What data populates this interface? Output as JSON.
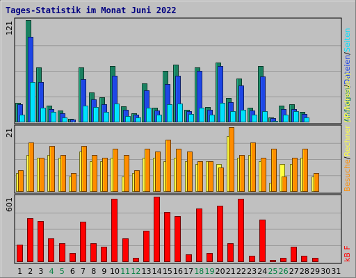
{
  "chart_data": {
    "type": "bar",
    "title": "Tages-Statistik im Monat Juni 2022",
    "days": [
      "1",
      "2",
      "3",
      "4",
      "5",
      "6",
      "7",
      "8",
      "9",
      "10",
      "11",
      "12",
      "13",
      "14",
      "15",
      "16",
      "17",
      "18",
      "19",
      "20",
      "21",
      "22",
      "23",
      "24",
      "25",
      "26",
      "27",
      "28",
      "29",
      "30",
      "31"
    ],
    "weekend_days": [
      "4",
      "5",
      "11",
      "12",
      "18",
      "19",
      "25",
      "26"
    ],
    "colors": {
      "title": "#000080",
      "weekday_label": "#000000",
      "weekend_label": "#008040",
      "anfragen": "#1a8060",
      "dateien": "#1e46e6",
      "seiten": "#00e0ff",
      "besuche": "#ff8c00",
      "rechner": "#ffff40",
      "kb": "#ff0000"
    },
    "panels": [
      {
        "id": "top",
        "ymax_label": "121",
        "ymax": 121,
        "legend": [
          {
            "key": "anfragen",
            "text": "Anfragen"
          },
          {
            "key": "sep",
            "text": "/"
          },
          {
            "key": "dateien",
            "text": "Dateien"
          },
          {
            "key": "sep",
            "text": "/"
          },
          {
            "key": "seiten",
            "text": "Seiten"
          }
        ],
        "series": [
          {
            "name": "Anfragen",
            "key": "anfragen",
            "values": [
              23,
              121,
              65,
              20,
              14,
              4,
              65,
              35,
              30,
              67,
              19,
              11,
              46,
              17,
              61,
              68,
              15,
              65,
              18,
              71,
              29,
              52,
              17,
              67,
              6,
              20,
              21,
              12,
              0,
              0,
              0
            ]
          },
          {
            "name": "Dateien",
            "key": "dateien",
            "values": [
              21,
              101,
              48,
              16,
              11,
              3,
              51,
              27,
              21,
              55,
              15,
              9,
              38,
              14,
              45,
              55,
              13,
              61,
              15,
              67,
              24,
              44,
              14,
              54,
              5,
              16,
              16,
              10,
              0,
              0,
              0
            ]
          },
          {
            "name": "Seiten",
            "key": "seiten",
            "values": [
              9,
              48,
              17,
              12,
              6,
              1,
              20,
              18,
              12,
              22,
              7,
              6,
              17,
              9,
              21,
              22,
              10,
              17,
              9,
              23,
              13,
              15,
              9,
              13,
              2,
              9,
              13,
              6,
              0,
              0,
              0
            ]
          }
        ]
      },
      {
        "id": "middle",
        "ymax_label": "21",
        "ymax": 21,
        "legend": [
          {
            "key": "besuche",
            "text": "Besuche"
          },
          {
            "key": "sep",
            "text": "/"
          },
          {
            "key": "rechner",
            "text": "Rechner (IP-Adressen)"
          }
        ],
        "series": [
          {
            "name": "Besuche",
            "key": "rechner",
            "values": [
              6,
              12,
              11,
              12,
              11,
              5,
              13,
              10,
              10,
              11,
              5,
              6,
              11,
              11,
              10,
              11,
              10,
              9,
              10,
              9,
              18,
              11,
              12,
              10,
              3,
              9,
              9,
              11,
              5,
              0,
              0
            ]
          },
          {
            "name": "Rechner (IP-Adressen)",
            "key": "besuche",
            "values": [
              7,
              16,
              11,
              15,
              12,
              6,
              15,
              12,
              11,
              14,
              12,
              7,
              14,
              13,
              17,
              14,
              13,
              10,
              10,
              8,
              21,
              12,
              16,
              11,
              14,
              5,
              11,
              14,
              6,
              0,
              0
            ]
          }
        ]
      },
      {
        "id": "bottom",
        "ymax_label": "601",
        "ymax": 601,
        "legend": [
          {
            "key": "kb",
            "text": "kB F"
          }
        ],
        "series": [
          {
            "name": "kB F",
            "key": "kb",
            "values": [
              160,
              400,
              380,
              220,
              170,
              80,
              370,
              170,
              140,
              580,
              220,
              40,
              290,
              601,
              460,
              420,
              70,
              490,
              80,
              520,
              170,
              580,
              60,
              390,
              20,
              40,
              140,
              60,
              40,
              0,
              0
            ]
          }
        ]
      }
    ]
  }
}
